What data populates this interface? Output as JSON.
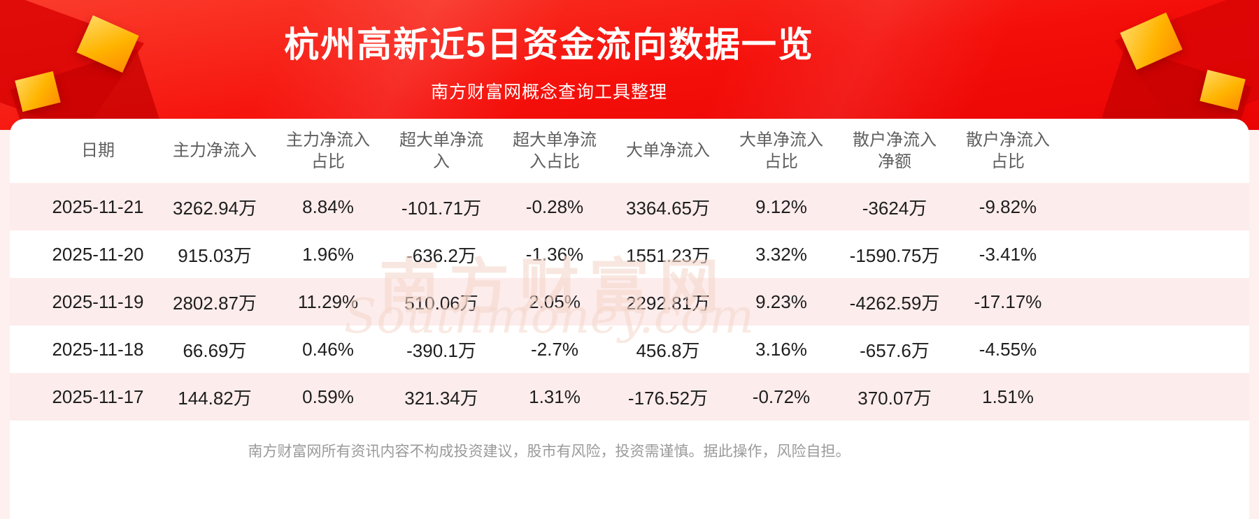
{
  "header": {
    "title": "杭州高新近5日资金流向数据一览",
    "subtitle": "南方财富网概念查询工具整理"
  },
  "watermark": {
    "cn": "南方财富网",
    "en": "Southmoney.com"
  },
  "footer": {
    "disclaimer": "南方财富网所有资讯内容不构成投资建议，股市有风险，投资需谨慎。据此操作，风险自担。"
  },
  "colors": {
    "banner_red": "#f50f0a",
    "banner_red_light": "#fb3c2c",
    "stripe_pink": "#fdecec",
    "text_dark": "#1e1e1e",
    "header_gray": "#5f5f5f",
    "footer_gray": "#9a9a9a",
    "gold": "#ffb400",
    "watermark_pink": "#f5d8cc"
  },
  "chart_data": {
    "type": "table",
    "title": "杭州高新近5日资金流向数据一览",
    "columns": [
      "日期",
      "主力净流入",
      "主力净流入\n占比",
      "超大单净流\n入",
      "超大单净流\n入占比",
      "大单净流入",
      "大单净流入\n占比",
      "散户净流入\n净额",
      "散户净流入\n占比"
    ],
    "rows": [
      [
        "2025-11-21",
        "3262.94万",
        "8.84%",
        "-101.71万",
        "-0.28%",
        "3364.65万",
        "9.12%",
        "-3624万",
        "-9.82%"
      ],
      [
        "2025-11-20",
        "915.03万",
        "1.96%",
        "-636.2万",
        "-1.36%",
        "1551.23万",
        "3.32%",
        "-1590.75万",
        "-3.41%"
      ],
      [
        "2025-11-19",
        "2802.87万",
        "11.29%",
        "510.06万",
        "2.05%",
        "2292.81万",
        "9.23%",
        "-4262.59万",
        "-17.17%"
      ],
      [
        "2025-11-18",
        "66.69万",
        "0.46%",
        "-390.1万",
        "-2.7%",
        "456.8万",
        "3.16%",
        "-657.6万",
        "-4.55%"
      ],
      [
        "2025-11-17",
        "144.82万",
        "0.59%",
        "321.34万",
        "1.31%",
        "-176.52万",
        "-0.72%",
        "370.07万",
        "1.51%"
      ]
    ]
  }
}
